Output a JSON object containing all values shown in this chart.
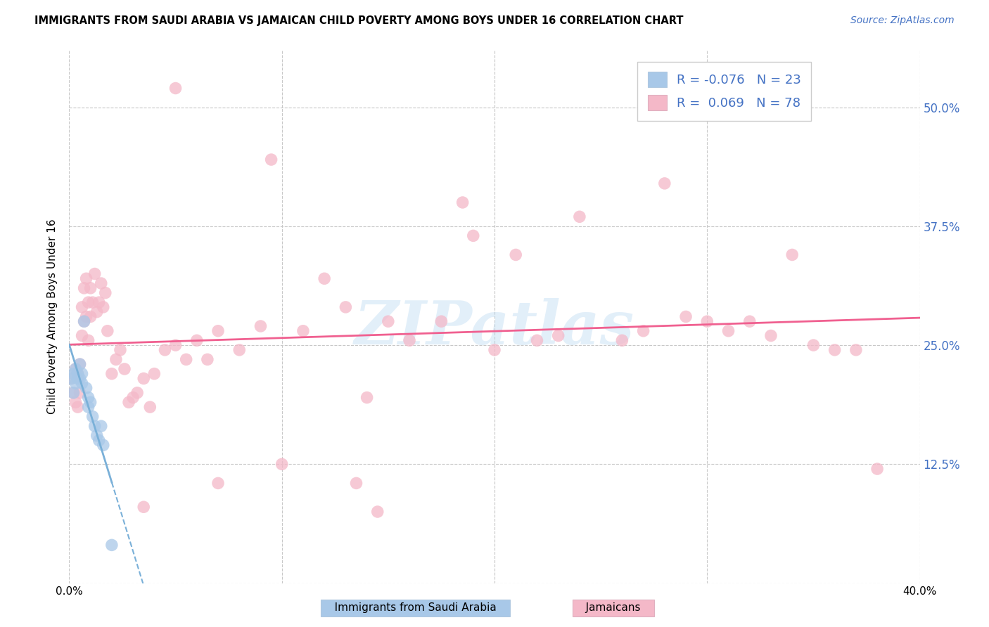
{
  "title": "IMMIGRANTS FROM SAUDI ARABIA VS JAMAICAN CHILD POVERTY AMONG BOYS UNDER 16 CORRELATION CHART",
  "source": "Source: ZipAtlas.com",
  "ylabel": "Child Poverty Among Boys Under 16",
  "xlim": [
    0.0,
    0.4
  ],
  "ylim": [
    0.0,
    0.56
  ],
  "xtick_positions": [
    0.0,
    0.1,
    0.2,
    0.3,
    0.4
  ],
  "ytick_positions": [
    0.0,
    0.125,
    0.25,
    0.375,
    0.5
  ],
  "ytick_labels": [
    "",
    "12.5%",
    "25.0%",
    "37.5%",
    "50.0%"
  ],
  "grid_color": "#c8c8c8",
  "background_color": "#ffffff",
  "blue_color": "#a8c8e8",
  "pink_color": "#f4b8c8",
  "blue_line_color": "#7ab0d8",
  "pink_line_color": "#f06090",
  "legend_r_blue": "-0.076",
  "legend_n_blue": "23",
  "legend_r_pink": "0.069",
  "legend_n_pink": "78",
  "legend_label_blue": "Immigrants from Saudi Arabia",
  "legend_label_pink": "Jamaicans",
  "watermark": "ZIPatlas",
  "blue_scatter_x": [
    0.001,
    0.002,
    0.002,
    0.003,
    0.003,
    0.004,
    0.004,
    0.005,
    0.005,
    0.006,
    0.006,
    0.007,
    0.008,
    0.009,
    0.009,
    0.01,
    0.011,
    0.012,
    0.013,
    0.014,
    0.015,
    0.016,
    0.02
  ],
  "blue_scatter_y": [
    0.215,
    0.22,
    0.2,
    0.225,
    0.21,
    0.22,
    0.215,
    0.23,
    0.215,
    0.22,
    0.21,
    0.275,
    0.205,
    0.195,
    0.185,
    0.19,
    0.175,
    0.165,
    0.155,
    0.15,
    0.165,
    0.145,
    0.04
  ],
  "pink_scatter_x": [
    0.001,
    0.002,
    0.003,
    0.003,
    0.004,
    0.004,
    0.005,
    0.005,
    0.006,
    0.006,
    0.007,
    0.007,
    0.008,
    0.008,
    0.009,
    0.009,
    0.01,
    0.01,
    0.011,
    0.012,
    0.013,
    0.014,
    0.015,
    0.016,
    0.017,
    0.018,
    0.02,
    0.022,
    0.024,
    0.026,
    0.028,
    0.03,
    0.032,
    0.035,
    0.038,
    0.04,
    0.045,
    0.05,
    0.055,
    0.06,
    0.065,
    0.07,
    0.08,
    0.09,
    0.1,
    0.11,
    0.12,
    0.13,
    0.14,
    0.15,
    0.16,
    0.175,
    0.19,
    0.2,
    0.21,
    0.22,
    0.23,
    0.24,
    0.26,
    0.27,
    0.28,
    0.29,
    0.3,
    0.31,
    0.32,
    0.33,
    0.34,
    0.35,
    0.36,
    0.37,
    0.095,
    0.185,
    0.135,
    0.05,
    0.07,
    0.38,
    0.145,
    0.035
  ],
  "pink_scatter_y": [
    0.215,
    0.2,
    0.225,
    0.19,
    0.22,
    0.185,
    0.23,
    0.2,
    0.29,
    0.26,
    0.31,
    0.275,
    0.32,
    0.28,
    0.295,
    0.255,
    0.31,
    0.28,
    0.295,
    0.325,
    0.285,
    0.295,
    0.315,
    0.29,
    0.305,
    0.265,
    0.22,
    0.235,
    0.245,
    0.225,
    0.19,
    0.195,
    0.2,
    0.215,
    0.185,
    0.22,
    0.245,
    0.25,
    0.235,
    0.255,
    0.235,
    0.265,
    0.245,
    0.27,
    0.125,
    0.265,
    0.32,
    0.29,
    0.195,
    0.275,
    0.255,
    0.275,
    0.365,
    0.245,
    0.345,
    0.255,
    0.26,
    0.385,
    0.255,
    0.265,
    0.42,
    0.28,
    0.275,
    0.265,
    0.275,
    0.26,
    0.345,
    0.25,
    0.245,
    0.245,
    0.445,
    0.4,
    0.105,
    0.52,
    0.105,
    0.12,
    0.075,
    0.08
  ]
}
